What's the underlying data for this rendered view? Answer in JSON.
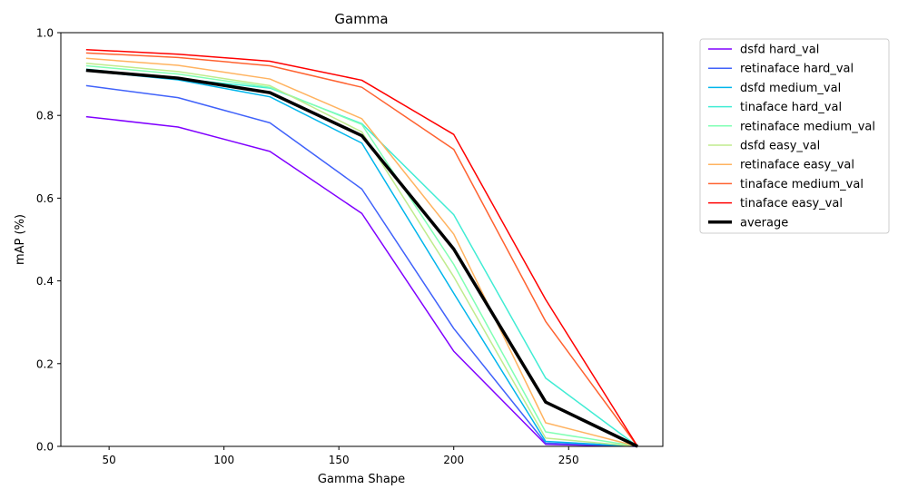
{
  "chart_data": {
    "type": "line",
    "title": "Gamma",
    "xlabel": "Gamma Shape",
    "ylabel": "mAP (%)",
    "x": [
      40,
      80,
      120,
      160,
      200,
      240,
      280
    ],
    "xlim": [
      29,
      291
    ],
    "ylim": [
      0.0,
      1.0
    ],
    "xticks": [
      "50",
      "100",
      "150",
      "200",
      "250"
    ],
    "yticks": [
      "0.0",
      "0.2",
      "0.4",
      "0.6",
      "0.8",
      "1.0"
    ],
    "grid": false,
    "legend_position": "outside-right",
    "series": [
      {
        "name": "dsfd hard_val",
        "color": "#8000ff",
        "values": [
          0.797,
          0.772,
          0.713,
          0.563,
          0.23,
          0.005,
          0.0
        ]
      },
      {
        "name": "retinaface hard_val",
        "color": "#4062fa",
        "values": [
          0.872,
          0.843,
          0.782,
          0.622,
          0.285,
          0.008,
          0.0
        ]
      },
      {
        "name": "dsfd medium_val",
        "color": "#00b5eb",
        "values": [
          0.908,
          0.886,
          0.845,
          0.733,
          0.37,
          0.012,
          0.0
        ]
      },
      {
        "name": "tinaface hard_val",
        "color": "#40ecd4",
        "values": [
          0.912,
          0.889,
          0.866,
          0.78,
          0.56,
          0.165,
          0.0
        ]
      },
      {
        "name": "retinaface medium_val",
        "color": "#80ffb4",
        "values": [
          0.92,
          0.9,
          0.868,
          0.778,
          0.44,
          0.035,
          0.0
        ]
      },
      {
        "name": "dsfd easy_val",
        "color": "#c0eb8d",
        "values": [
          0.926,
          0.906,
          0.872,
          0.76,
          0.41,
          0.02,
          0.0
        ]
      },
      {
        "name": "retinaface easy_val",
        "color": "#ffb360",
        "values": [
          0.938,
          0.921,
          0.888,
          0.792,
          0.513,
          0.057,
          0.0
        ]
      },
      {
        "name": "tinaface medium_val",
        "color": "#ff6230",
        "values": [
          0.951,
          0.94,
          0.92,
          0.868,
          0.718,
          0.302,
          0.0
        ]
      },
      {
        "name": "tinaface easy_val",
        "color": "#ff0000",
        "values": [
          0.959,
          0.948,
          0.931,
          0.885,
          0.754,
          0.355,
          0.0
        ]
      },
      {
        "name": "average",
        "color": "#000000",
        "values": [
          0.909,
          0.89,
          0.855,
          0.751,
          0.477,
          0.107,
          0.0
        ],
        "bold": true
      }
    ]
  }
}
